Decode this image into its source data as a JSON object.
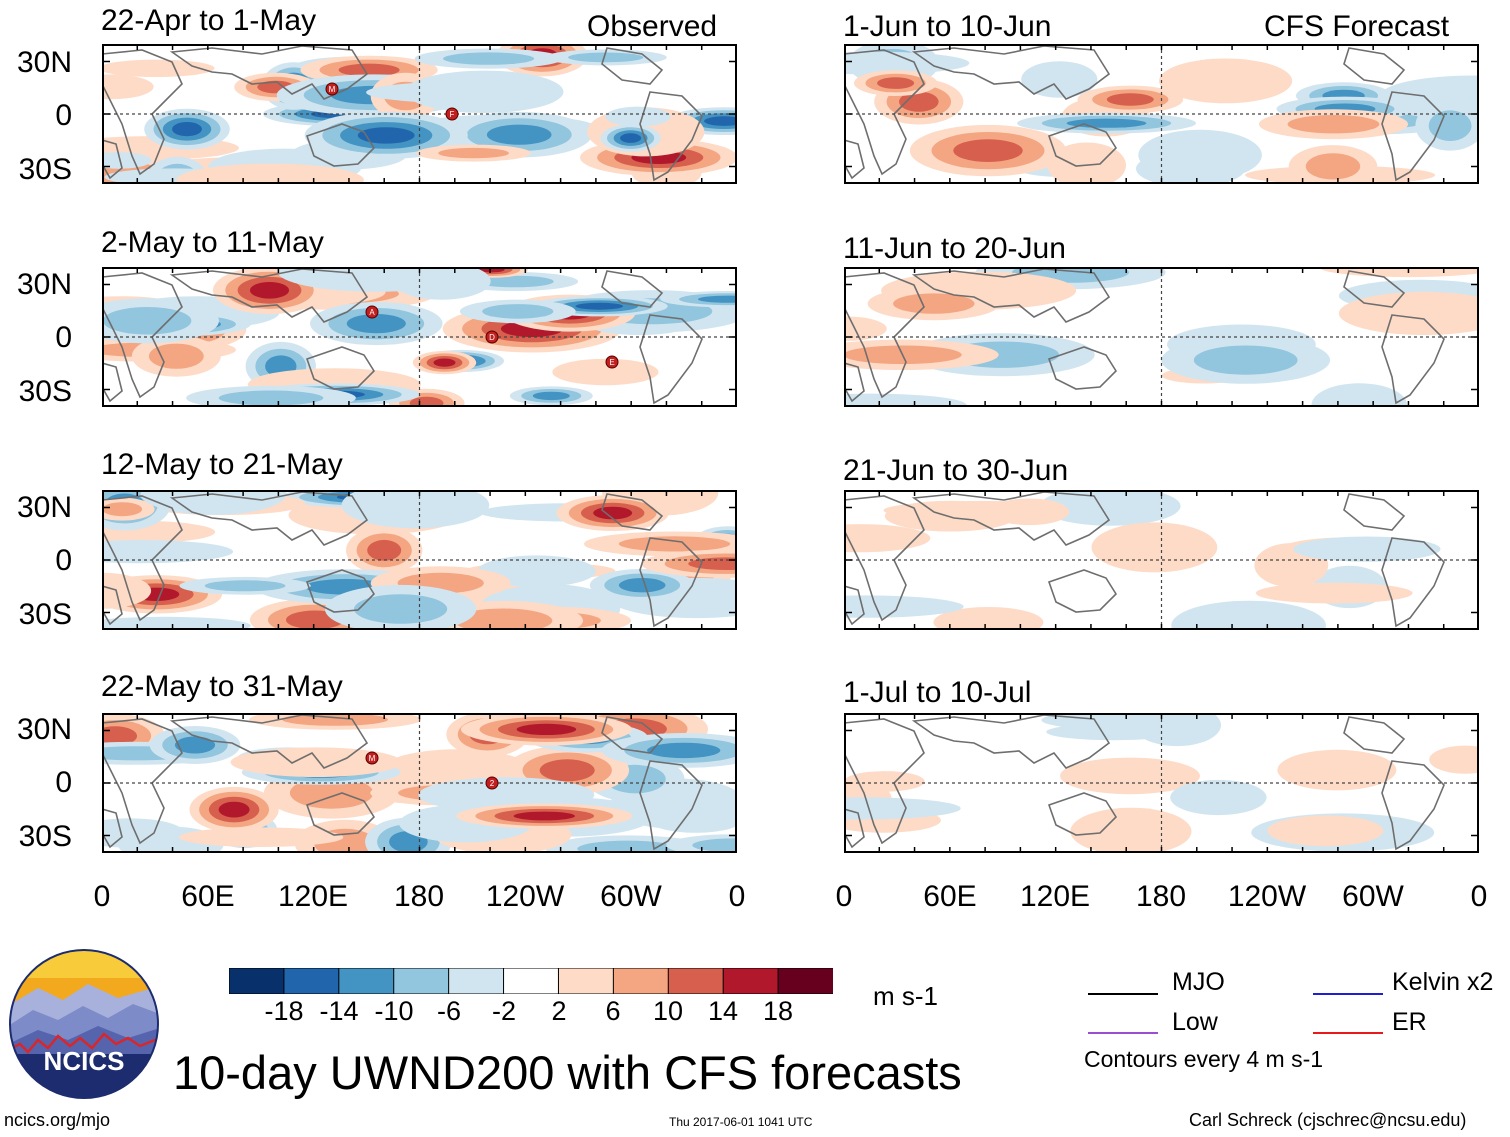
{
  "panels": [
    {
      "id": "obs1",
      "date_range": "22-Apr to 1-May",
      "label": "Observed",
      "storms": [
        "M",
        "F"
      ]
    },
    {
      "id": "obs2",
      "date_range": "2-May to 11-May",
      "label": "",
      "storms": [
        "A",
        "D",
        "E"
      ]
    },
    {
      "id": "obs3",
      "date_range": "12-May to 21-May",
      "label": "",
      "storms": []
    },
    {
      "id": "obs4",
      "date_range": "22-May to 31-May",
      "label": "",
      "storms": [
        "M",
        "2"
      ]
    },
    {
      "id": "fc1",
      "date_range": "1-Jun to 10-Jun",
      "label": "CFS Forecast",
      "storms": []
    },
    {
      "id": "fc2",
      "date_range": "11-Jun to 20-Jun",
      "label": "",
      "storms": []
    },
    {
      "id": "fc3",
      "date_range": "21-Jun to 30-Jun",
      "label": "",
      "storms": []
    },
    {
      "id": "fc4",
      "date_range": "1-Jul to 10-Jul",
      "label": "",
      "storms": []
    }
  ],
  "lat_labels": [
    "30N",
    "0",
    "30S"
  ],
  "lon_labels": [
    "0",
    "60E",
    "120E",
    "180",
    "120W",
    "60W",
    "0"
  ],
  "colorbar": {
    "ticks": [
      "-18",
      "-14",
      "-10",
      "-6",
      "-2",
      "2",
      "6",
      "10",
      "14",
      "18"
    ],
    "colors": [
      "#08306b",
      "#2166ac",
      "#4393c3",
      "#92c5de",
      "#d1e5f0",
      "#ffffff",
      "#fddbc7",
      "#f4a582",
      "#d6604d",
      "#b2182b",
      "#67001f"
    ],
    "units": "m s-1"
  },
  "legend": {
    "items": [
      {
        "label": "MJO",
        "color": "#000000"
      },
      {
        "label": "Kelvin x2",
        "color": "#1f1fd1"
      },
      {
        "label": "Low",
        "color": "#9b4fd0"
      },
      {
        "label": "ER",
        "color": "#e8191a"
      }
    ],
    "contours_note": "Contours every 4 m s-1"
  },
  "logo": {
    "text": "NCICS"
  },
  "main_title": "10-day UWND200 with CFS forecasts",
  "footer": {
    "url": "ncics.org/mjo",
    "timestamp": "Thu 2017-06-01 1041 UTC",
    "credit": "Carl Schreck (cjschrec@ncsu.edu)"
  }
}
